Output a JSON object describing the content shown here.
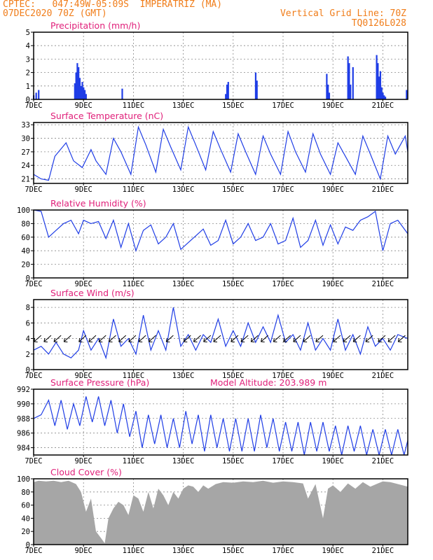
{
  "header": {
    "line1": "CPTEC:   047:49W-05:09S  IMPERATRIZ (MA)",
    "line2": "07DEC2020 70Z (GMT)",
    "right1": "Vertical Grid Line: 70Z",
    "right2": "TQ0126L028"
  },
  "colors": {
    "header": "#f07d1a",
    "title": "#e0207a",
    "series": "#1f3de6",
    "cloud": "#a6a6a6"
  },
  "x_axis": {
    "ticks": [
      "7DEC",
      "9DEC",
      "11DEC",
      "13DEC",
      "15DEC",
      "17DEC",
      "19DEC",
      "21DEC"
    ],
    "tick_days": [
      7,
      9,
      11,
      13,
      15,
      17,
      19,
      21
    ],
    "range_days": [
      7,
      22
    ]
  },
  "chart_data": [
    {
      "type": "bar",
      "title": "Precipitation (mm/h)",
      "ylim": [
        0,
        5
      ],
      "yticks": [
        0,
        1,
        2,
        3,
        4,
        5
      ],
      "x_day": [
        7.0,
        7.1,
        7.2,
        8.65,
        8.7,
        8.75,
        8.8,
        8.85,
        8.9,
        8.95,
        9.0,
        9.05,
        9.1,
        10.55,
        14.7,
        14.75,
        14.8,
        15.9,
        15.95,
        18.75,
        18.8,
        18.85,
        19.6,
        19.65,
        19.7,
        19.8,
        20.75,
        20.8,
        20.85,
        20.9,
        20.95,
        21.0,
        21.05,
        21.1,
        21.95
      ],
      "values": [
        0.3,
        0.5,
        0.7,
        1.2,
        2.0,
        2.7,
        2.4,
        1.6,
        1.0,
        1.3,
        0.9,
        0.7,
        0.4,
        0.8,
        0.4,
        1.1,
        1.3,
        2.0,
        1.4,
        1.9,
        1.1,
        0.5,
        3.2,
        2.7,
        1.1,
        2.4,
        3.3,
        2.7,
        1.7,
        2.1,
        0.9,
        0.5,
        0.3,
        0.2,
        0.7
      ]
    },
    {
      "type": "line",
      "title": "Surface Temperature (nC)",
      "ylim": [
        20,
        33.5
      ],
      "yticks": [
        21,
        24,
        27,
        30,
        33
      ],
      "x_day": [
        7.0,
        7.3,
        7.6,
        7.85,
        8.3,
        8.6,
        8.95,
        9.3,
        9.5,
        9.9,
        10.2,
        10.5,
        10.9,
        11.2,
        11.5,
        11.9,
        12.2,
        12.5,
        12.9,
        13.2,
        13.5,
        13.9,
        14.2,
        14.5,
        14.9,
        15.2,
        15.5,
        15.9,
        16.2,
        16.5,
        16.9,
        17.2,
        17.5,
        17.9,
        18.2,
        18.5,
        18.9,
        19.2,
        19.5,
        19.9,
        20.2,
        20.5,
        20.9,
        21.2,
        21.5,
        21.9,
        22.0
      ],
      "values": [
        22.0,
        21.0,
        20.7,
        26.0,
        29.0,
        25.0,
        23.5,
        27.5,
        25.0,
        22.0,
        30.0,
        27.0,
        22.0,
        32.5,
        28.5,
        22.5,
        32.0,
        28.0,
        23.0,
        32.5,
        28.5,
        23.0,
        31.5,
        27.5,
        22.5,
        31.0,
        27.0,
        22.0,
        30.5,
        26.5,
        22.0,
        31.5,
        27.0,
        22.5,
        31.0,
        26.5,
        22.0,
        29.0,
        26.0,
        22.0,
        30.5,
        26.5,
        21.0,
        30.5,
        26.5,
        30.5,
        27.0
      ]
    },
    {
      "type": "line",
      "title": "Relative Humidity (%)",
      "ylim": [
        0,
        100
      ],
      "yticks": [
        0,
        20,
        40,
        60,
        80,
        100
      ],
      "x_day": [
        7.0,
        7.3,
        7.6,
        7.9,
        8.2,
        8.5,
        8.8,
        9.0,
        9.3,
        9.6,
        9.9,
        10.2,
        10.5,
        10.8,
        11.1,
        11.4,
        11.7,
        12.0,
        12.3,
        12.6,
        12.9,
        13.2,
        13.5,
        13.8,
        14.1,
        14.4,
        14.7,
        15.0,
        15.3,
        15.6,
        15.9,
        16.2,
        16.5,
        16.8,
        17.1,
        17.4,
        17.7,
        18.0,
        18.3,
        18.6,
        18.9,
        19.2,
        19.5,
        19.8,
        20.1,
        20.4,
        20.7,
        21.0,
        21.3,
        21.6,
        22.0
      ],
      "values": [
        100,
        98,
        60,
        70,
        80,
        85,
        65,
        85,
        80,
        83,
        58,
        85,
        45,
        80,
        40,
        70,
        78,
        50,
        60,
        80,
        42,
        52,
        62,
        72,
        48,
        55,
        85,
        50,
        60,
        80,
        55,
        60,
        80,
        50,
        55,
        88,
        45,
        55,
        85,
        48,
        78,
        50,
        75,
        70,
        85,
        90,
        98,
        40,
        80,
        85,
        65
      ]
    },
    {
      "type": "line",
      "title": "Surface Wind (m/s)",
      "ylim": [
        0,
        9
      ],
      "yticks": [
        0,
        2,
        4,
        6,
        8
      ],
      "x_day": [
        7.0,
        7.3,
        7.6,
        7.9,
        8.2,
        8.5,
        8.8,
        9.0,
        9.3,
        9.6,
        9.9,
        10.2,
        10.5,
        10.8,
        11.1,
        11.4,
        11.7,
        12.0,
        12.3,
        12.6,
        12.9,
        13.2,
        13.5,
        13.8,
        14.1,
        14.4,
        14.7,
        15.0,
        15.3,
        15.6,
        15.9,
        16.2,
        16.5,
        16.8,
        17.1,
        17.4,
        17.7,
        18.0,
        18.3,
        18.6,
        18.9,
        19.2,
        19.5,
        19.8,
        20.1,
        20.4,
        20.7,
        21.0,
        21.3,
        21.6,
        22.0
      ],
      "values": [
        2.5,
        3.0,
        2.0,
        3.5,
        2.0,
        1.5,
        2.5,
        5.0,
        2.5,
        4.0,
        1.5,
        6.5,
        3.0,
        4.0,
        2.0,
        7.0,
        2.5,
        5.0,
        2.5,
        8.0,
        3.0,
        4.5,
        2.5,
        4.5,
        3.5,
        6.5,
        3.0,
        5.0,
        3.0,
        6.0,
        3.5,
        5.5,
        3.5,
        7.0,
        3.5,
        4.5,
        2.5,
        6.0,
        2.5,
        4.0,
        2.5,
        6.5,
        2.5,
        4.5,
        2.0,
        5.5,
        3.0,
        4.0,
        2.5,
        4.5,
        4.0
      ],
      "arrows_day": [
        7.3,
        7.7,
        8.1,
        8.5,
        9.1,
        9.5,
        9.9,
        10.3,
        10.7,
        11.1,
        11.5,
        11.9,
        12.6,
        13.3,
        13.7,
        14.1,
        14.5,
        15.2,
        15.6,
        16.0,
        16.4,
        16.9,
        17.3,
        17.7,
        18.1,
        18.6,
        19.3,
        19.7,
        20.1,
        20.6,
        21.1,
        21.5,
        21.9
      ]
    },
    {
      "type": "line",
      "title": "Surface Pressure (hPa)",
      "subtitle": "Model Altitude: 203.989 m",
      "ylim": [
        983,
        992
      ],
      "yticks": [
        984,
        986,
        988,
        990,
        992
      ],
      "x_day": [
        7.0,
        7.3,
        7.6,
        7.85,
        8.1,
        8.35,
        8.6,
        8.85,
        9.1,
        9.35,
        9.6,
        9.85,
        10.1,
        10.35,
        10.6,
        10.85,
        11.1,
        11.35,
        11.6,
        11.85,
        12.1,
        12.35,
        12.6,
        12.85,
        13.1,
        13.35,
        13.6,
        13.85,
        14.1,
        14.35,
        14.6,
        14.85,
        15.1,
        15.35,
        15.6,
        15.85,
        16.1,
        16.35,
        16.6,
        16.85,
        17.1,
        17.35,
        17.6,
        17.85,
        18.1,
        18.35,
        18.6,
        18.85,
        19.1,
        19.35,
        19.6,
        19.85,
        20.1,
        20.35,
        20.6,
        20.85,
        21.1,
        21.35,
        21.6,
        21.85,
        22.0
      ],
      "values": [
        988.0,
        988.5,
        990.5,
        987.0,
        990.5,
        986.5,
        990.0,
        987.0,
        991.0,
        987.5,
        991.0,
        987.0,
        990.5,
        986.0,
        990.0,
        985.5,
        989.0,
        984.0,
        988.5,
        984.5,
        988.5,
        984.0,
        988.0,
        984.0,
        989.0,
        984.5,
        988.5,
        983.5,
        988.5,
        984.0,
        988.0,
        983.5,
        988.0,
        983.5,
        988.0,
        983.5,
        988.5,
        984.0,
        988.0,
        983.5,
        987.5,
        983.5,
        987.5,
        983.0,
        987.5,
        983.5,
        987.5,
        983.5,
        987.0,
        983.0,
        987.0,
        983.5,
        987.0,
        983.0,
        986.5,
        983.0,
        986.5,
        983.0,
        986.5,
        983.0,
        985.0
      ]
    },
    {
      "type": "area",
      "title": "Cloud Cover (%)",
      "ylim": [
        0,
        100
      ],
      "yticks": [
        0,
        20,
        40,
        60,
        80,
        100
      ],
      "x_day": [
        7.0,
        7.2,
        7.5,
        7.8,
        8.1,
        8.4,
        8.7,
        8.9,
        9.1,
        9.3,
        9.5,
        9.7,
        9.85,
        10.0,
        10.2,
        10.4,
        10.6,
        10.8,
        11.0,
        11.2,
        11.4,
        11.6,
        11.8,
        12.0,
        12.2,
        12.4,
        12.6,
        12.8,
        13.0,
        13.2,
        13.4,
        13.6,
        13.8,
        14.0,
        14.3,
        14.6,
        15.0,
        15.4,
        15.8,
        16.2,
        16.6,
        17.0,
        17.4,
        17.8,
        18.0,
        18.3,
        18.6,
        18.8,
        19.0,
        19.3,
        19.6,
        19.9,
        20.2,
        20.5,
        20.8,
        21.0,
        21.3,
        21.6,
        22.0
      ],
      "values": [
        95,
        97,
        96,
        97,
        95,
        97,
        92,
        80,
        50,
        70,
        20,
        10,
        2,
        40,
        55,
        65,
        60,
        45,
        75,
        70,
        50,
        80,
        55,
        85,
        75,
        60,
        80,
        70,
        85,
        90,
        88,
        80,
        90,
        85,
        92,
        95,
        94,
        96,
        95,
        97,
        94,
        96,
        95,
        93,
        70,
        92,
        40,
        85,
        90,
        80,
        93,
        85,
        95,
        88,
        93,
        96,
        95,
        92,
        88
      ]
    }
  ]
}
